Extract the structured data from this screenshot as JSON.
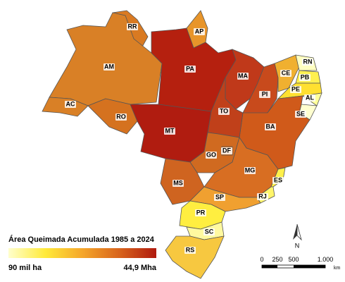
{
  "legend": {
    "title": "Área Queimada Acumulada 1985 a 2024",
    "min_label": "90 mil ha",
    "max_label": "44,9 Mha",
    "colors": [
      "#ffffcc",
      "#ffea3a",
      "#f5a62a",
      "#d8641c",
      "#b01a0e"
    ]
  },
  "scale_bar": {
    "labels": [
      "0",
      "250",
      "500",
      "1.000"
    ],
    "unit": "km"
  },
  "north": "N",
  "states": [
    {
      "label": "RR",
      "color": "#d97a22"
    },
    {
      "label": "AP",
      "color": "#e8952a"
    },
    {
      "label": "AM",
      "color": "#d98026"
    },
    {
      "label": "PA",
      "color": "#b5200f"
    },
    {
      "label": "MA",
      "color": "#c0391a"
    },
    {
      "label": "PI",
      "color": "#c84a1c"
    },
    {
      "label": "CE",
      "color": "#f0b030"
    },
    {
      "label": "RN",
      "color": "#ffffc0"
    },
    {
      "label": "PB",
      "color": "#fff050"
    },
    {
      "label": "PE",
      "color": "#ffe030"
    },
    {
      "label": "AL",
      "color": "#ffff99"
    },
    {
      "label": "SE",
      "color": "#ffffd0"
    },
    {
      "label": "BA",
      "color": "#d05a1a"
    },
    {
      "label": "TO",
      "color": "#c0401a"
    },
    {
      "label": "AC",
      "color": "#d98026"
    },
    {
      "label": "RO",
      "color": "#d5721f"
    },
    {
      "label": "MT",
      "color": "#b01c10"
    },
    {
      "label": "GO",
      "color": "#d06a20"
    },
    {
      "label": "DF",
      "color": "#d87020"
    },
    {
      "label": "MS",
      "color": "#cf6420"
    },
    {
      "label": "MG",
      "color": "#d86e22"
    },
    {
      "label": "ES",
      "color": "#fff04a"
    },
    {
      "label": "RJ",
      "color": "#fff56a"
    },
    {
      "label": "SP",
      "color": "#f0a030"
    },
    {
      "label": "PR",
      "color": "#ffee40"
    },
    {
      "label": "SC",
      "color": "#fff9a0"
    },
    {
      "label": "RS",
      "color": "#f7c840"
    }
  ]
}
